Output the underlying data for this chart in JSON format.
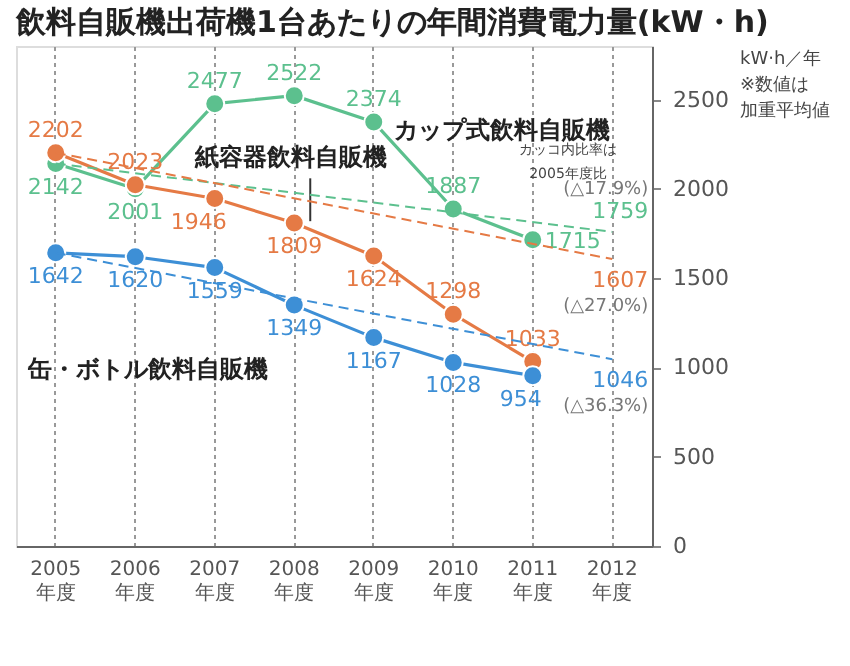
{
  "chart_data": {
    "type": "line",
    "title": "飲料自販機出荷機1台あたりの年間消費電力量(kW・h)",
    "categories": [
      "2005 年度",
      "2006 年度",
      "2007 年度",
      "2008 年度",
      "2009 年度",
      "2010 年度",
      "2011 年度",
      "2012 年度"
    ],
    "series": [
      {
        "name": "カップ式飲料自販機",
        "color": "#5cc08e",
        "values": [
          2142,
          2001,
          2477,
          2522,
          2374,
          1887,
          1715,
          null
        ]
      },
      {
        "name": "紙容器飲料自販機",
        "color": "#e57a45",
        "values": [
          2202,
          2023,
          1946,
          1809,
          1624,
          1298,
          1033,
          null
        ]
      },
      {
        "name": "缶・ボトル飲料自販機",
        "color": "#3d8fd6",
        "values": [
          1642,
          1620,
          1559,
          1349,
          1167,
          1028,
          954,
          null
        ]
      },
      {
        "type": "line",
        "line_style": "dashed",
        "marker": "none",
        "color": "#5cc08e",
        "x": [
          "2005 年度",
          "2012 年度"
        ],
        "values": [
          2142,
          1759
        ],
        "value_labels": [
          null,
          "1759"
        ]
      },
      {
        "type": "line",
        "line_style": "dashed",
        "marker": "none",
        "color": "#e57a45",
        "x": [
          "2005 年度",
          "2012 年度"
        ],
        "values": [
          2202,
          1607
        ],
        "value_labels": [
          null,
          "1607"
        ]
      },
      {
        "type": "line",
        "line_style": "dashed",
        "marker": "none",
        "color": "#3d8fd6",
        "x": [
          "2005 年度",
          "2012 年度"
        ],
        "values": [
          1642,
          1046
        ],
        "value_labels": [
          null,
          "1046"
        ]
      }
    ],
    "data_labels": true,
    "marker": "circle",
    "line_style": "solid",
    "ylim": [
      0,
      2800
    ],
    "yticks": [
      0,
      500,
      1000,
      1500,
      2000,
      2500
    ],
    "grid": "x",
    "annotations": [
      {
        "text": "(△17.9%)",
        "x": "2012 年度",
        "y": 1759
      },
      {
        "text": "(△27.0%)",
        "x": "2012 年度",
        "y": 1607
      },
      {
        "text": "(△36.3%)",
        "x": "2012 年度",
        "y": 1046
      },
      "kW·h／年",
      "※数値は",
      "加重平均値",
      "カッコ内比率は",
      "2005年度比"
    ]
  }
}
